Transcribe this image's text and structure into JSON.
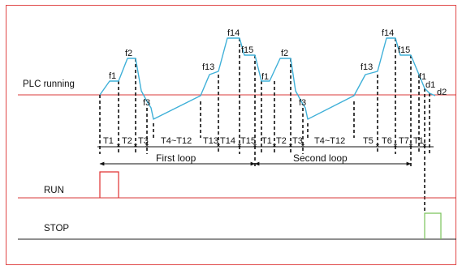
{
  "colors": {
    "border": "#e04848",
    "speed_curve": "#3fb0d8",
    "plc_line": "#d83a3a",
    "run_line": "#d83a3a",
    "run_pulse": "#e03030",
    "stop_line": "#222222",
    "stop_pulse": "#7ac35a",
    "guide": "#111111"
  },
  "signals": {
    "plc": "PLC running",
    "run": "RUN",
    "stop": "STOP"
  },
  "freq_labels": {
    "f1a": "f1",
    "f2a": "f2",
    "f3a": "f3",
    "f13a": "f13",
    "f14a": "f14",
    "f15a": "f15",
    "f1b": "f1",
    "f2b": "f2",
    "f3b": "f3",
    "f13b": "f13",
    "f14b": "f14",
    "f15b": "f15",
    "f1c": "f1",
    "d1": "d1",
    "d2": "d2"
  },
  "time_labels": {
    "t1a": "T1",
    "t2a": "T2",
    "t3a": "T3",
    "t412a": "T4~T12",
    "t13a": "T13",
    "t14a": "T14",
    "t15a": "T15",
    "t1b": "T1",
    "t2b": "T2",
    "t3b": "T3",
    "t412b": "T4~T12",
    "t5b": "T5",
    "t6b": "T6",
    "t7b": "T7",
    "t1c": "T1"
  },
  "loops": {
    "first": "First loop",
    "second": "Second loop"
  }
}
